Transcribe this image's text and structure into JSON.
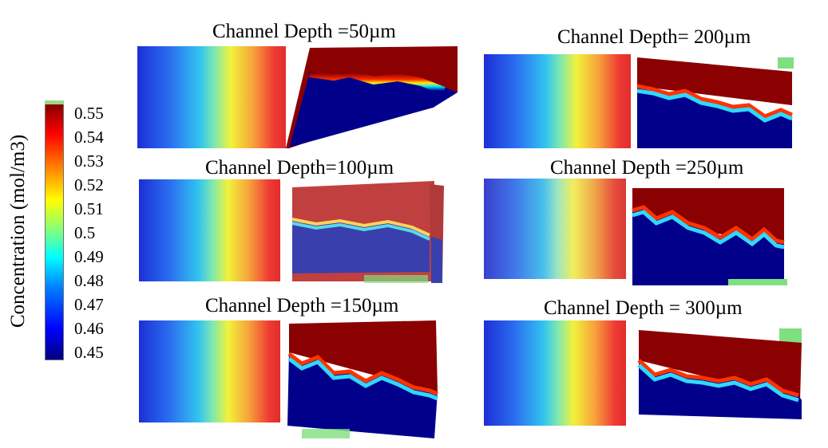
{
  "colorbar": {
    "label": "Concentration (mol/m3)",
    "ticks": [
      "0.55",
      "0.54",
      "0.53",
      "0.52",
      "0.51",
      "0.5",
      "0.49",
      "0.48",
      "0.47",
      "0.46",
      "0.45"
    ]
  },
  "panels": [
    {
      "id": "50",
      "title": "Channel Depth =50µm"
    },
    {
      "id": "200",
      "title": "Channel Depth= 200µm"
    },
    {
      "id": "100",
      "title": "Channel  Depth=100µm"
    },
    {
      "id": "250",
      "title": "Channel  Depth =250µm"
    },
    {
      "id": "150",
      "title": "Channel Depth =150µm"
    },
    {
      "id": "300",
      "title": "Channel Depth = 300µm"
    }
  ],
  "colors": {
    "red": "#8b0000",
    "blue": "#00008b",
    "green": "#7fe07f"
  }
}
